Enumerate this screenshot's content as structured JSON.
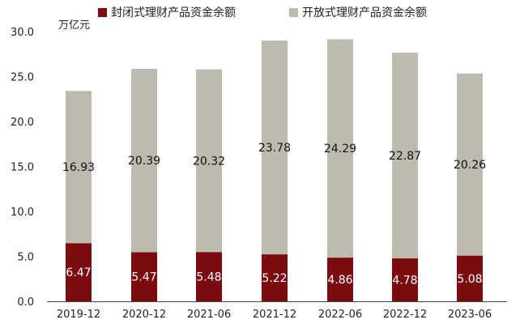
{
  "chart_data": {
    "type": "bar",
    "stacked": true,
    "categories": [
      "2019-12",
      "2020-12",
      "2021-06",
      "2021-12",
      "2022-06",
      "2022-12",
      "2023-06"
    ],
    "series": [
      {
        "name": "封闭式理财产品资金余额",
        "color": "#7b0b10",
        "values": [
          6.47,
          5.47,
          5.48,
          5.22,
          4.86,
          4.78,
          5.08
        ]
      },
      {
        "name": "开放式理财产品资金余额",
        "color": "#bcbbae",
        "values": [
          16.93,
          20.39,
          20.32,
          23.78,
          24.29,
          22.87,
          20.26
        ]
      }
    ],
    "ylim": [
      0,
      30
    ],
    "yticks": [
      "0.0",
      "5.0",
      "10.0",
      "15.0",
      "20.0",
      "25.0",
      "30.0"
    ],
    "unit": "万亿元",
    "legend": "top",
    "grid": false
  }
}
